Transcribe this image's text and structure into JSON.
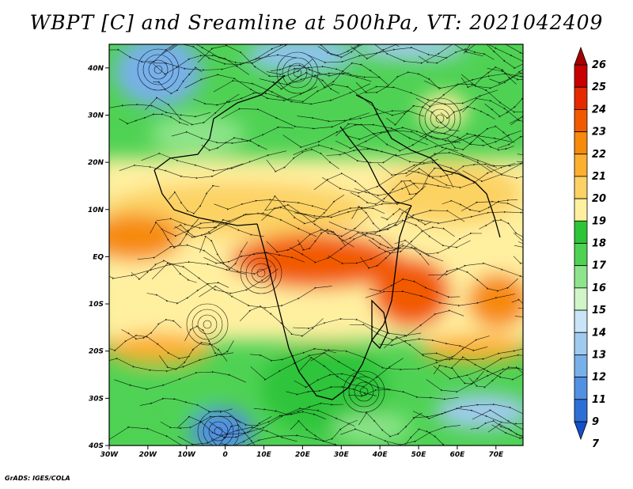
{
  "title": "WBPT [C] and Sreamline at 500hPa, VT: 2021042409",
  "credit": "GrADS: IGES/COLA",
  "map": {
    "lon_range": [
      -30,
      77
    ],
    "lat_range": [
      -40,
      45
    ],
    "lat_ticks": [
      {
        "value": 40,
        "label": "40N"
      },
      {
        "value": 30,
        "label": "30N"
      },
      {
        "value": 20,
        "label": "20N"
      },
      {
        "value": 10,
        "label": "10N"
      },
      {
        "value": 0,
        "label": "EQ"
      },
      {
        "value": -10,
        "label": "10S"
      },
      {
        "value": -20,
        "label": "20S"
      },
      {
        "value": -30,
        "label": "30S"
      },
      {
        "value": -40,
        "label": "40S"
      }
    ],
    "lon_ticks": [
      {
        "value": -30,
        "label": "30W"
      },
      {
        "value": -20,
        "label": "20W"
      },
      {
        "value": -10,
        "label": "10W"
      },
      {
        "value": 0,
        "label": "0"
      },
      {
        "value": 10,
        "label": "10E"
      },
      {
        "value": 20,
        "label": "20E"
      },
      {
        "value": 30,
        "label": "30E"
      },
      {
        "value": 40,
        "label": "40E"
      },
      {
        "value": 50,
        "label": "50E"
      },
      {
        "value": 60,
        "label": "60E"
      },
      {
        "value": 70,
        "label": "70E"
      }
    ]
  },
  "colorbar": {
    "levels": [
      "26",
      "25",
      "24",
      "23",
      "22",
      "21",
      "20",
      "19",
      "18",
      "17",
      "16",
      "15",
      "14",
      "13",
      "12",
      "11",
      "9",
      "7"
    ],
    "colors": [
      "#a50000",
      "#c80000",
      "#e52a00",
      "#f25a00",
      "#f78a0a",
      "#fcb030",
      "#fcd264",
      "#fff0a0",
      "#2ec43a",
      "#4fd254",
      "#8ee48a",
      "#d0f5c8",
      "#c8e4f6",
      "#a0cbf0",
      "#78b0ea",
      "#5290e2",
      "#2e6fd6",
      "#1250c8"
    ]
  }
}
